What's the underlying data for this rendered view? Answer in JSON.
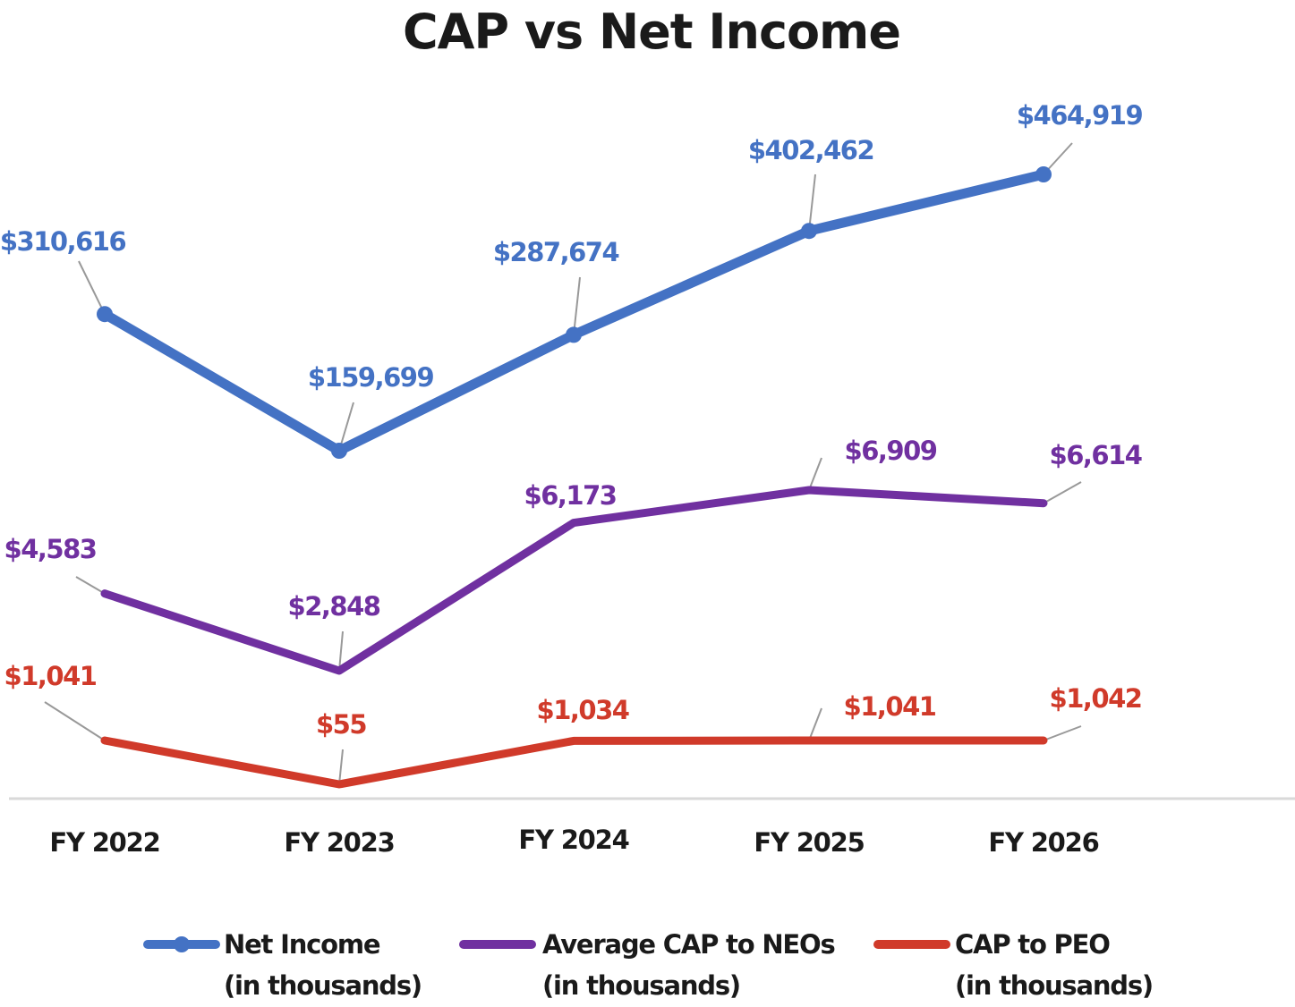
{
  "chart_data": {
    "type": "line",
    "title": "CAP vs Net Income",
    "xlabel": "",
    "ylabel": "",
    "grid": false,
    "legend_position": "bottom",
    "categories": [
      "FY 2022",
      "FY 2023",
      "FY 2024",
      "FY 2025",
      "FY 2026"
    ],
    "series": [
      {
        "name": "Net Income",
        "name_line2": "(in thousands)",
        "color": "#4472c4",
        "markers": true,
        "values": [
          310616,
          159699,
          287674,
          402462,
          464919
        ],
        "labels": [
          "$310,616",
          "$159,699",
          "$287,674",
          "$402,462",
          "$464,919"
        ]
      },
      {
        "name": "Average CAP to NEOs",
        "name_line2": "(in thousands)",
        "color": "#7030a0",
        "markers": false,
        "values": [
          4583,
          2848,
          6173,
          6909,
          6614
        ],
        "labels": [
          "$4,583",
          "$2,848",
          "$6,173",
          "$6,909",
          "$6,614"
        ]
      },
      {
        "name": "CAP to PEO",
        "name_line2": "(in thousands)",
        "color": "#d03a2a",
        "markers": false,
        "values": [
          1041,
          55,
          1034,
          1041,
          1042
        ],
        "labels": [
          "$1,041",
          "$55",
          "$1,034",
          "$1,041",
          "$1,042"
        ]
      }
    ],
    "leader_line_color": "#999999",
    "axis_line_color": "#d9d9d9"
  }
}
